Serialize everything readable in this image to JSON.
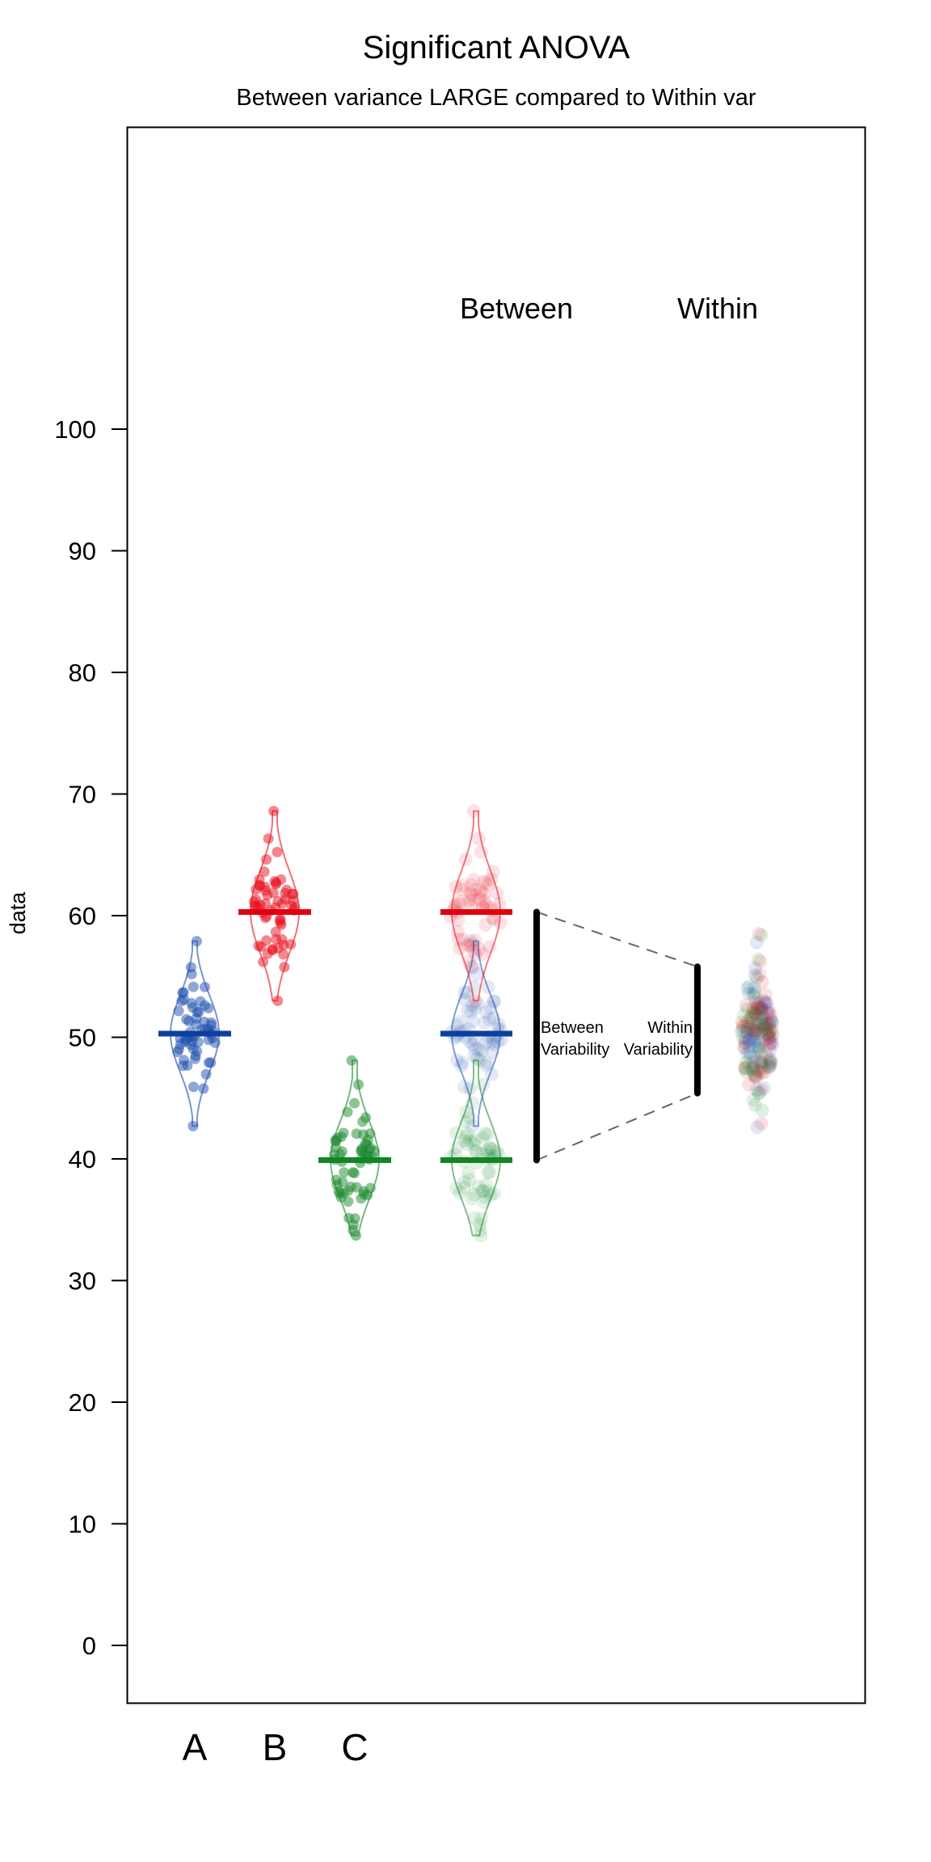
{
  "chart_data": {
    "type": "scatter",
    "subtype": "violin-jitter (ANOVA illustration)",
    "title": "Significant ANOVA",
    "subtitle": "Between variance LARGE compared to Within var",
    "xlabel": "",
    "ylabel": "data",
    "ylim": [
      -5,
      111
    ],
    "y_ticks": [
      0,
      10,
      20,
      30,
      40,
      50,
      60,
      70,
      80,
      90,
      100
    ],
    "grid": false,
    "legend": "none",
    "categories": [
      "A",
      "B",
      "C"
    ],
    "column_headers": [
      "Between",
      "Within"
    ],
    "series": [
      {
        "name": "A",
        "color": "#1f4fae",
        "line_color": "#0d3f9c",
        "mean": 50.3,
        "min": 42.7,
        "max": 57.9,
        "sd": 3.0,
        "n": 60
      },
      {
        "name": "B",
        "color": "#e8101e",
        "line_color": "#e0000f",
        "mean": 60.3,
        "min": 53.0,
        "max": 68.6,
        "sd": 3.2,
        "n": 60
      },
      {
        "name": "C",
        "color": "#1a8a2e",
        "line_color": "#128524",
        "mean": 39.9,
        "min": 33.7,
        "max": 48.1,
        "sd": 3.0,
        "n": 60
      }
    ],
    "between_variability": {
      "label_line1": "Between",
      "label_line2": "Variability",
      "from": 39.9,
      "to": 60.3
    },
    "within_variability": {
      "label_line1": "Within",
      "label_line2": "Variability",
      "from": 45.4,
      "to": 55.8,
      "center": 50.2,
      "min": 42.7,
      "max": 58.4
    }
  }
}
